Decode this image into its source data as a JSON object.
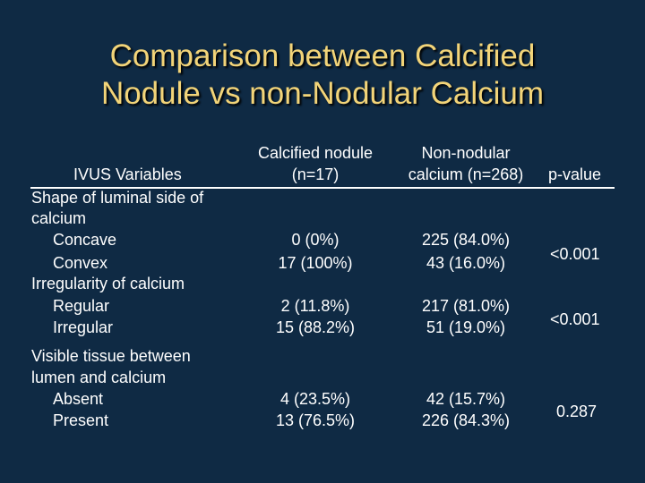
{
  "title": {
    "line1": "Comparison between Calcified",
    "line2": "Nodule vs non-Nodular Calcium"
  },
  "table": {
    "headers": {
      "variables": "IVUS Variables",
      "calcified_line1": "Calcified nodule",
      "calcified_line2": "(n=17)",
      "nonnodular_line1": "Non-nodular",
      "nonnodular_line2": "calcium (n=268)",
      "pvalue": "p-value"
    },
    "groups": [
      {
        "title_lines": [
          "Shape of luminal side of",
          "calcium"
        ],
        "rows": [
          {
            "label": "Concave",
            "calcified": "0 (0%)",
            "nonnodular": "225 (84.0%)"
          },
          {
            "label": "Convex",
            "calcified": "17 (100%)",
            "nonnodular": "43 (16.0%)"
          }
        ],
        "pvalue": "<0.001"
      },
      {
        "title_lines": [
          "Irregularity of calcium"
        ],
        "rows": [
          {
            "label": "Regular",
            "calcified": "2 (11.8%)",
            "nonnodular": "217 (81.0%)"
          },
          {
            "label": "Irregular",
            "calcified": "15 (88.2%)",
            "nonnodular": "51 (19.0%)"
          }
        ],
        "pvalue": "<0.001"
      },
      {
        "title_lines": [
          "Visible tissue between",
          "lumen and calcium"
        ],
        "rows": [
          {
            "label": "Absent",
            "calcified": "4 (23.5%)",
            "nonnodular": "42 (15.7%)"
          },
          {
            "label": "Present",
            "calcified": "13 (76.5%)",
            "nonnodular": "226 (84.3%)"
          }
        ],
        "pvalue": "0.287"
      }
    ]
  }
}
